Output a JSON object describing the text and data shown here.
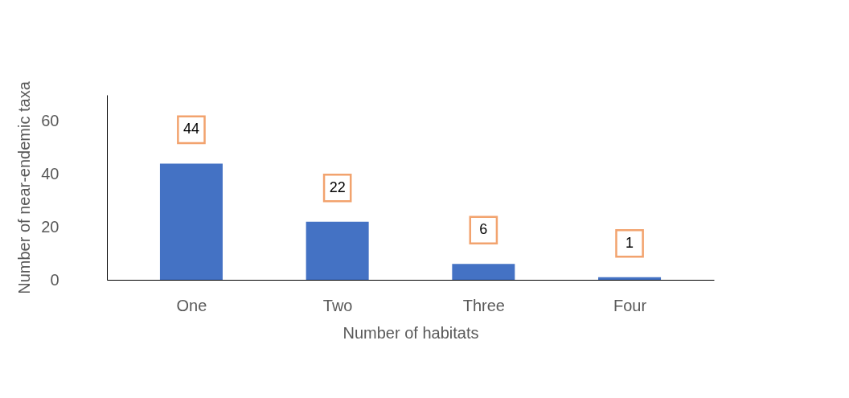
{
  "chart_data": {
    "type": "bar",
    "xlabel": "Number of habitats",
    "ylabel": "Number of near-endemic taxa",
    "categories": [
      "One",
      "Two",
      "Three",
      "Four"
    ],
    "values": [
      44,
      22,
      6,
      1
    ],
    "color": "#4472c4",
    "ylim": [
      0,
      70
    ],
    "yticks": [
      0,
      20,
      40,
      60
    ],
    "grid": false,
    "data_labels": true
  }
}
